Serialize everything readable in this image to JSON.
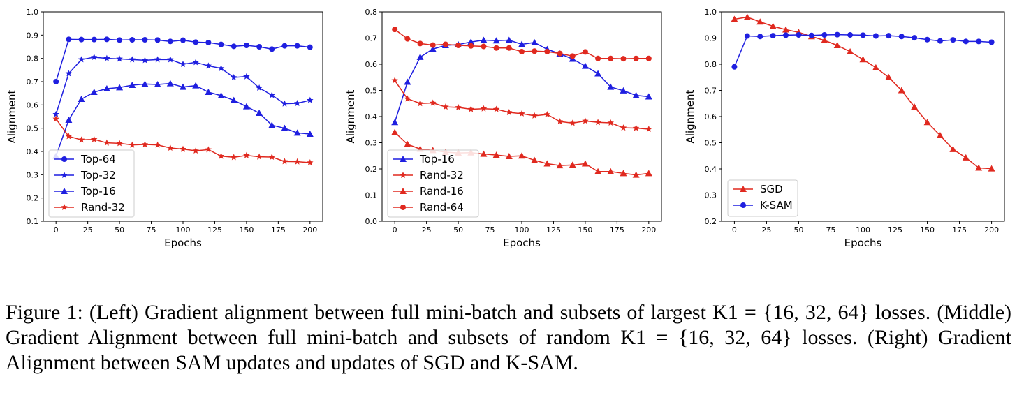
{
  "colors": {
    "blue": "#1f1fe0",
    "red": "#e0291f"
  },
  "caption": "Figure 1: (Left) Gradient alignment between full mini-batch and subsets of largest K1 = {16, 32, 64} losses. (Middle) Gradient Alignment between full mini-batch and subsets of random K1 = {16, 32, 64} losses. (Right) Gradient Alignment between SAM updates and updates of SGD and K-SAM.",
  "chart_data": [
    {
      "type": "line",
      "xlabel": "Epochs",
      "ylabel": "Alignment",
      "xlim": [
        -10,
        210
      ],
      "ylim": [
        0.1,
        1.0
      ],
      "xticks": [
        0,
        25,
        50,
        75,
        100,
        125,
        150,
        175,
        200
      ],
      "yticks": [
        0.1,
        0.2,
        0.3,
        0.4,
        0.5,
        0.6,
        0.7,
        0.8,
        0.9,
        1.0
      ],
      "legend_position": "lower-left",
      "x": [
        0,
        10,
        20,
        30,
        40,
        50,
        60,
        70,
        80,
        90,
        100,
        110,
        120,
        130,
        140,
        150,
        160,
        170,
        180,
        190,
        200
      ],
      "series": [
        {
          "name": "Top-64",
          "color": "blue",
          "marker": "circle",
          "values": [
            0.7,
            0.882,
            0.881,
            0.881,
            0.882,
            0.879,
            0.88,
            0.88,
            0.879,
            0.873,
            0.878,
            0.87,
            0.868,
            0.86,
            0.852,
            0.856,
            0.85,
            0.84,
            0.854,
            0.854,
            0.848
          ]
        },
        {
          "name": "Top-32",
          "color": "blue",
          "marker": "star",
          "values": [
            0.56,
            0.735,
            0.795,
            0.805,
            0.8,
            0.798,
            0.795,
            0.792,
            0.795,
            0.795,
            0.775,
            0.783,
            0.768,
            0.757,
            0.718,
            0.722,
            0.673,
            0.642,
            0.605,
            0.607,
            0.62
          ]
        },
        {
          "name": "Top-16",
          "color": "blue",
          "marker": "triangle",
          "values": [
            0.38,
            0.535,
            0.625,
            0.655,
            0.67,
            0.675,
            0.685,
            0.69,
            0.688,
            0.692,
            0.677,
            0.683,
            0.655,
            0.64,
            0.62,
            0.593,
            0.565,
            0.513,
            0.5,
            0.48,
            0.475
          ]
        },
        {
          "name": "Rand-32",
          "color": "red",
          "marker": "star",
          "values": [
            0.54,
            0.465,
            0.45,
            0.452,
            0.437,
            0.435,
            0.428,
            0.43,
            0.428,
            0.415,
            0.41,
            0.403,
            0.408,
            0.38,
            0.375,
            0.383,
            0.377,
            0.376,
            0.357,
            0.356,
            0.352
          ]
        }
      ]
    },
    {
      "type": "line",
      "xlabel": "Epochs",
      "ylabel": "Alignment",
      "xlim": [
        -10,
        210
      ],
      "ylim": [
        0.0,
        0.8
      ],
      "xticks": [
        0,
        25,
        50,
        75,
        100,
        125,
        150,
        175,
        200
      ],
      "yticks": [
        0.0,
        0.1,
        0.2,
        0.3,
        0.4,
        0.5,
        0.6,
        0.7,
        0.8
      ],
      "legend_position": "lower-left",
      "x": [
        0,
        10,
        20,
        30,
        40,
        50,
        60,
        70,
        80,
        90,
        100,
        110,
        120,
        130,
        140,
        150,
        160,
        170,
        180,
        190,
        200
      ],
      "series": [
        {
          "name": "Top-16",
          "color": "blue",
          "marker": "triangle",
          "values": [
            0.378,
            0.532,
            0.627,
            0.658,
            0.672,
            0.675,
            0.685,
            0.692,
            0.69,
            0.692,
            0.676,
            0.683,
            0.657,
            0.64,
            0.62,
            0.593,
            0.564,
            0.513,
            0.499,
            0.481,
            0.476
          ]
        },
        {
          "name": "Rand-32",
          "color": "red",
          "marker": "star",
          "values": [
            0.538,
            0.468,
            0.45,
            0.452,
            0.437,
            0.435,
            0.428,
            0.43,
            0.428,
            0.416,
            0.411,
            0.403,
            0.408,
            0.381,
            0.375,
            0.383,
            0.378,
            0.376,
            0.357,
            0.356,
            0.352
          ]
        },
        {
          "name": "Rand-16",
          "color": "red",
          "marker": "triangle",
          "values": [
            0.34,
            0.294,
            0.276,
            0.271,
            0.264,
            0.261,
            0.262,
            0.257,
            0.253,
            0.248,
            0.25,
            0.233,
            0.22,
            0.213,
            0.215,
            0.22,
            0.19,
            0.19,
            0.183,
            0.177,
            0.183
          ]
        },
        {
          "name": "Rand-64",
          "color": "red",
          "marker": "circle",
          "values": [
            0.733,
            0.697,
            0.679,
            0.673,
            0.676,
            0.672,
            0.67,
            0.668,
            0.662,
            0.662,
            0.648,
            0.65,
            0.648,
            0.641,
            0.631,
            0.647,
            0.622,
            0.622,
            0.621,
            0.622,
            0.622
          ]
        }
      ]
    },
    {
      "type": "line",
      "xlabel": "Epochs",
      "ylabel": "Alignment",
      "xlim": [
        -10,
        210
      ],
      "ylim": [
        0.2,
        1.0
      ],
      "xticks": [
        0,
        25,
        50,
        75,
        100,
        125,
        150,
        175,
        200
      ],
      "yticks": [
        0.2,
        0.3,
        0.4,
        0.5,
        0.6,
        0.7,
        0.8,
        0.9,
        1.0
      ],
      "legend_position": "lower-left",
      "x": [
        0,
        10,
        20,
        30,
        40,
        50,
        60,
        70,
        80,
        90,
        100,
        110,
        120,
        130,
        140,
        150,
        160,
        170,
        180,
        190,
        200
      ],
      "series": [
        {
          "name": "SGD",
          "color": "red",
          "marker": "triangle",
          "values": [
            0.972,
            0.98,
            0.962,
            0.945,
            0.932,
            0.922,
            0.906,
            0.891,
            0.872,
            0.848,
            0.818,
            0.787,
            0.75,
            0.7,
            0.637,
            0.578,
            0.528,
            0.475,
            0.443,
            0.404,
            0.401
          ]
        },
        {
          "name": "K-SAM",
          "color": "blue",
          "marker": "circle",
          "values": [
            0.79,
            0.908,
            0.906,
            0.909,
            0.911,
            0.912,
            0.91,
            0.912,
            0.913,
            0.912,
            0.911,
            0.908,
            0.909,
            0.906,
            0.901,
            0.894,
            0.889,
            0.893,
            0.887,
            0.887,
            0.884
          ]
        }
      ]
    }
  ]
}
